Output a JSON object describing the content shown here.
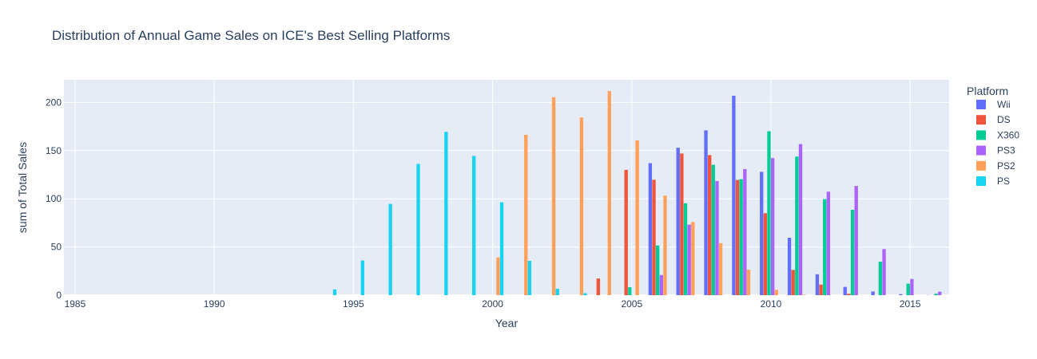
{
  "chart_data": {
    "type": "bar",
    "title": "Distribution of Annual Game Sales on ICE's Best Selling Platforms",
    "xlabel": "Year",
    "ylabel": "sum of Total Sales",
    "xlim": [
      1984.6,
      2016.4
    ],
    "ylim": [
      0,
      223.5
    ],
    "xticks": [
      1985,
      1990,
      1995,
      2000,
      2005,
      2010,
      2015
    ],
    "yticks": [
      0,
      50,
      100,
      150,
      200
    ],
    "grid": true,
    "legend_title": "Platform",
    "legend_position": "right",
    "colors": {
      "Wii": "#636efa",
      "DS": "#ef553b",
      "X360": "#00cc96",
      "PS3": "#ab63fa",
      "PS2": "#ffa15a",
      "PS": "#19d3f3",
      "plot_bg": "#e5ecf6"
    },
    "series": [
      {
        "name": "Wii",
        "x": [
          2006,
          2007,
          2008,
          2009,
          2010,
          2011,
          2012,
          2013,
          2014,
          2015,
          2016
        ],
        "values": [
          137,
          153,
          171,
          207,
          128,
          59.6,
          21.7,
          8.6,
          3.8,
          1.1,
          0.2
        ]
      },
      {
        "name": "DS",
        "x": [
          2004,
          2005,
          2006,
          2007,
          2008,
          2009,
          2010,
          2011,
          2012,
          2013
        ],
        "values": [
          17.3,
          130,
          119.8,
          147,
          145.3,
          119.6,
          85,
          26.2,
          11,
          1.5
        ]
      },
      {
        "name": "X360",
        "x": [
          2005,
          2006,
          2007,
          2008,
          2009,
          2010,
          2011,
          2012,
          2013,
          2014,
          2015,
          2016
        ],
        "values": [
          8.3,
          51.6,
          95.4,
          135.3,
          120.3,
          170,
          143.8,
          99.7,
          88.6,
          34.7,
          11.9,
          1.5
        ]
      },
      {
        "name": "PS3",
        "x": [
          2006,
          2007,
          2008,
          2009,
          2010,
          2011,
          2012,
          2013,
          2014,
          2015,
          2016
        ],
        "values": [
          20.9,
          73.2,
          118.5,
          130.9,
          142.2,
          156.8,
          107.4,
          113.3,
          47.8,
          16.8,
          3.6
        ]
      },
      {
        "name": "PS2",
        "x": [
          2000,
          2001,
          2002,
          2003,
          2004,
          2005,
          2006,
          2007,
          2008,
          2009,
          2010,
          2011
        ],
        "values": [
          39.2,
          166.4,
          205.4,
          184.3,
          211.8,
          160.7,
          103.4,
          75.9,
          53.9,
          26.4,
          5.6,
          0.5
        ]
      },
      {
        "name": "PS",
        "x": [
          1994,
          1995,
          1996,
          1997,
          1998,
          1999,
          2000,
          2001,
          2002,
          2003
        ],
        "values": [
          6,
          35.9,
          94.7,
          136.2,
          169.5,
          144.5,
          96.4,
          35.6,
          6.7,
          2.1
        ]
      }
    ]
  }
}
